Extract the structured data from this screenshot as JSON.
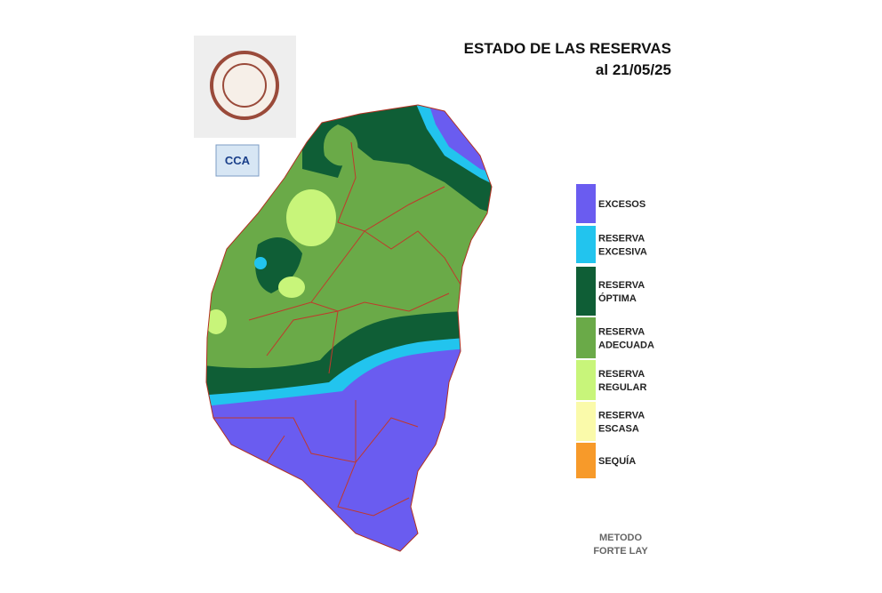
{
  "header": {
    "title": "ESTADO DE LAS RESERVAS",
    "date": "al 21/05/25"
  },
  "logo": {
    "text": "CCA"
  },
  "legend": [
    {
      "lines": [
        "EXCESOS"
      ],
      "color": "#6a5cf0"
    },
    {
      "lines": [
        "RESERVA",
        "EXCESIVA"
      ],
      "color": "#22c4ee"
    },
    {
      "lines": [
        "RESERVA",
        "ÓPTIMA"
      ],
      "color": "#0f5e36"
    },
    {
      "lines": [
        "RESERVA",
        "ADECUADA"
      ],
      "color": "#6aaa48"
    },
    {
      "lines": [
        "RESERVA",
        "REGULAR"
      ],
      "color": "#c8f57a"
    },
    {
      "lines": [
        "RESERVA",
        "ESCASA"
      ],
      "color": "#fafaaa"
    },
    {
      "lines": [
        "SEQUÍA"
      ],
      "color": "#f79a2a"
    }
  ],
  "method": {
    "lines": [
      "METODO",
      "FORTE LAY"
    ]
  }
}
